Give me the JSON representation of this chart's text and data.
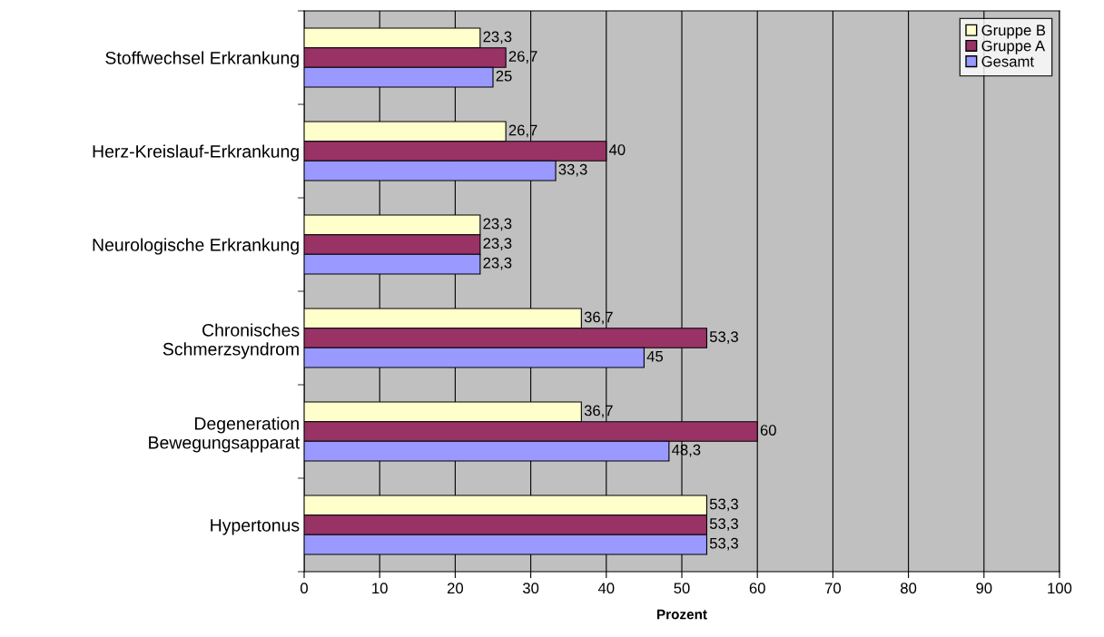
{
  "chart_data": {
    "type": "bar",
    "orientation": "horizontal",
    "categories": [
      "Stoffwechsel Erkrankung",
      "Herz-Kreislauf-Erkrankung",
      "Neurologische Erkrankung",
      "Chronisches\nSchmerzsyndrom",
      "Degeneration\nBewegungsapparat",
      "Hypertonus"
    ],
    "series": [
      {
        "name": "Gruppe B",
        "color": "#ffffcc",
        "values": [
          23.3,
          26.7,
          23.3,
          36.7,
          36.7,
          53.3
        ],
        "value_labels": [
          "23,3",
          "26,7",
          "23,3",
          "36,7",
          "36,7",
          "53,3"
        ]
      },
      {
        "name": "Gruppe A",
        "color": "#993366",
        "values": [
          26.7,
          40,
          23.3,
          53.3,
          60,
          53.3
        ],
        "value_labels": [
          "26,7",
          "40",
          "23,3",
          "53,3",
          "60",
          "53,3"
        ]
      },
      {
        "name": "Gesamt",
        "color": "#9999ff",
        "values": [
          25,
          33.3,
          23.3,
          45,
          48.3,
          53.3
        ],
        "value_labels": [
          "25",
          "33,3",
          "23,3",
          "45",
          "48,3",
          "53,3"
        ]
      }
    ],
    "xlabel": "Prozent",
    "xlim": [
      0,
      100
    ],
    "xticks": [
      0,
      10,
      20,
      30,
      40,
      50,
      60,
      70,
      80,
      90,
      100
    ],
    "grid": "x",
    "legend": "top right"
  }
}
